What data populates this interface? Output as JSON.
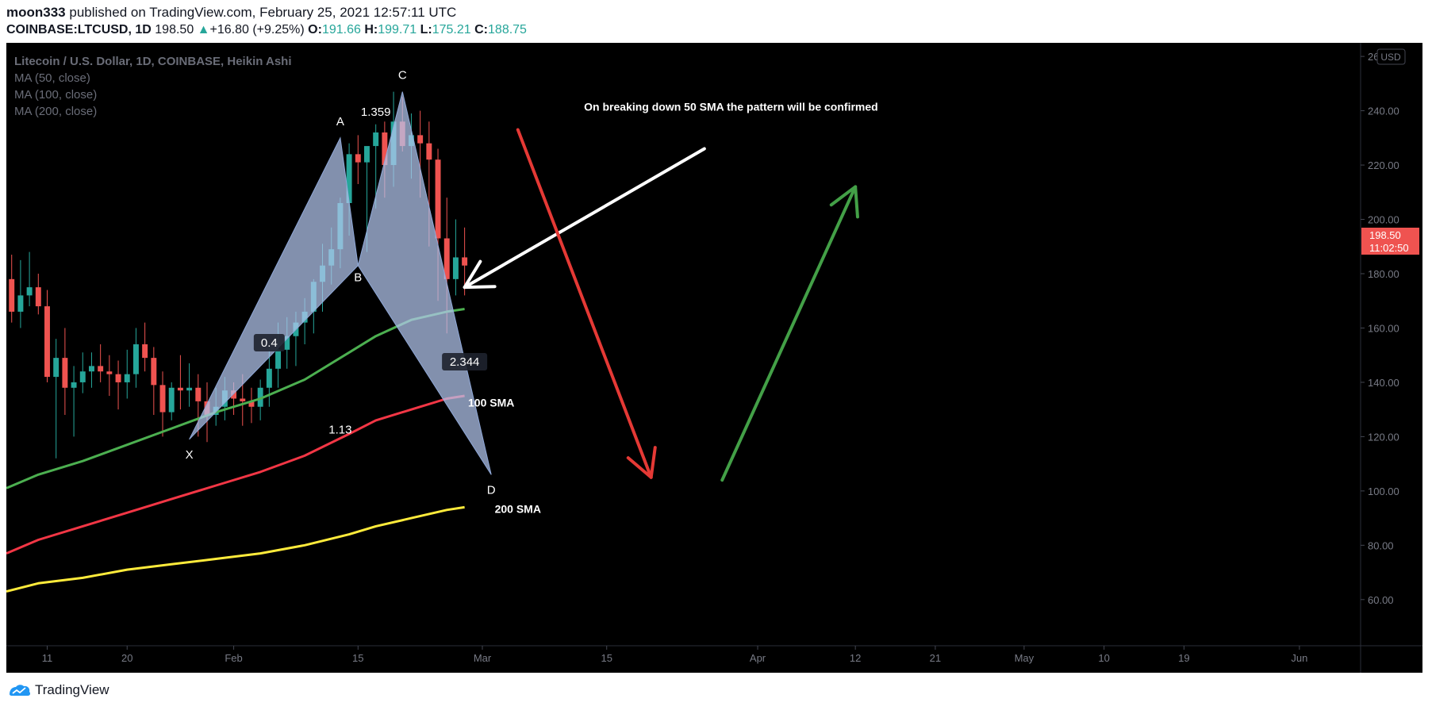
{
  "header": {
    "author": "moon333",
    "published_text": "published on TradingView.com, February 25, 2021 12:57:11 UTC",
    "symbol": "COINBASE:LTCUSD, 1D",
    "last": "198.50",
    "change": "+16.80 (+9.25%)",
    "open_label": "O:",
    "open": "191.66",
    "high_label": "H:",
    "high": "199.71",
    "low_label": "L:",
    "low": "175.21",
    "close_label": "C:",
    "close": "188.75"
  },
  "legend": {
    "title": "Litecoin / U.S. Dollar, 1D, COINBASE, Heikin Ashi",
    "ma50": "MA (50, close)",
    "ma100": "MA (100, close)",
    "ma200": "MA (200, close)"
  },
  "price_axis": {
    "currency": "USD",
    "last_price": "198.50",
    "countdown": "11:02:50"
  },
  "footer": {
    "brand": "TradingView"
  },
  "colors": {
    "background": "#000000",
    "up": "#26a69a",
    "down": "#ef5350",
    "ma50": "#4caf50",
    "ma100": "#f23645",
    "ma200": "#ffeb3b",
    "pattern_fill": "#b4c8f0",
    "arrow_red": "#e53935",
    "arrow_green": "#43a047",
    "arrow_white": "#ffffff"
  },
  "chart_data": {
    "type": "candlestick",
    "title": "Litecoin / U.S. Dollar, 1D, COINBASE, Heikin Ashi",
    "y_ticks": [
      "60.00",
      "80.00",
      "100.00",
      "120.00",
      "140.00",
      "160.00",
      "180.00",
      "200.00",
      "220.00",
      "240.00",
      "260.00"
    ],
    "y_tick_values": [
      60,
      80,
      100,
      120,
      140,
      160,
      180,
      200,
      220,
      240,
      260
    ],
    "ylim": [
      43,
      265
    ],
    "x_ticks": [
      {
        "label": "11",
        "day": 11
      },
      {
        "label": "20",
        "day": 20
      },
      {
        "label": "Feb",
        "day": 32
      },
      {
        "label": "15",
        "day": 46
      },
      {
        "label": "Mar",
        "day": 60
      },
      {
        "label": "15",
        "day": 74
      },
      {
        "label": "Apr",
        "day": 91
      },
      {
        "label": "12",
        "day": 102
      },
      {
        "label": "21",
        "day": 111
      },
      {
        "label": "May",
        "day": 121
      },
      {
        "label": "10",
        "day": 130
      },
      {
        "label": "19",
        "day": 139
      },
      {
        "label": "Jun",
        "day": 152
      }
    ],
    "x_unit": "day of year 2021",
    "xlim": [
      6.4,
      158.8
    ],
    "candles_ohlc": [
      [
        7,
        178,
        187,
        162,
        166
      ],
      [
        8,
        166,
        185,
        160,
        172
      ],
      [
        9,
        172,
        188,
        168,
        175
      ],
      [
        10,
        175,
        180,
        165,
        168
      ],
      [
        11,
        168,
        174,
        140,
        142
      ],
      [
        12,
        142,
        156,
        112,
        149
      ],
      [
        13,
        149,
        160,
        128,
        138
      ],
      [
        14,
        138,
        146,
        120,
        140
      ],
      [
        15,
        140,
        151,
        136,
        144
      ],
      [
        16,
        144,
        151,
        138,
        146
      ],
      [
        17,
        146,
        154,
        140,
        144
      ],
      [
        18,
        144,
        150,
        135,
        143
      ],
      [
        19,
        143,
        148,
        130,
        140
      ],
      [
        20,
        140,
        152,
        134,
        143
      ],
      [
        21,
        143,
        160,
        138,
        154
      ],
      [
        22,
        154,
        162,
        144,
        149
      ],
      [
        23,
        149,
        153,
        128,
        139
      ],
      [
        24,
        139,
        144,
        120,
        129
      ],
      [
        25,
        129,
        140,
        126,
        138
      ],
      [
        26,
        138,
        150,
        130,
        137
      ],
      [
        27,
        137,
        147,
        131,
        138
      ],
      [
        28,
        138,
        143,
        120,
        133
      ],
      [
        29,
        133,
        140,
        118,
        128
      ],
      [
        30,
        128,
        138,
        124,
        131
      ],
      [
        31,
        131,
        142,
        126,
        137
      ],
      [
        32,
        137,
        140,
        128,
        134
      ],
      [
        33,
        134,
        143,
        124,
        133
      ],
      [
        34,
        133,
        138,
        125,
        131
      ],
      [
        35,
        131,
        141,
        126,
        138
      ],
      [
        36,
        138,
        154,
        131,
        145
      ],
      [
        37,
        145,
        162,
        138,
        152
      ],
      [
        38,
        152,
        164,
        145,
        157
      ],
      [
        39,
        157,
        166,
        146,
        162
      ],
      [
        40,
        162,
        171,
        154,
        166
      ],
      [
        41,
        166,
        178,
        158,
        177
      ],
      [
        42,
        177,
        191,
        166,
        183
      ],
      [
        43,
        183,
        197,
        176,
        189
      ],
      [
        44,
        189,
        208,
        182,
        206
      ],
      [
        45,
        206,
        228,
        194,
        224
      ],
      [
        46,
        224,
        231,
        213,
        221
      ],
      [
        47,
        221,
        226,
        188,
        227
      ],
      [
        48,
        227,
        235,
        204,
        232
      ],
      [
        49,
        232,
        236,
        208,
        220
      ],
      [
        50,
        220,
        247,
        212,
        236
      ],
      [
        51,
        236,
        245,
        225,
        227
      ],
      [
        52,
        227,
        239,
        215,
        231
      ],
      [
        53,
        231,
        240,
        208,
        228
      ],
      [
        54,
        228,
        236,
        190,
        222
      ],
      [
        55,
        222,
        226,
        170,
        193
      ],
      [
        56,
        193,
        208,
        158,
        178
      ],
      [
        57,
        178,
        200,
        172,
        186
      ],
      [
        58,
        186,
        197,
        172,
        183
      ]
    ],
    "series": [
      {
        "name": "MA (50, close)",
        "x": [
          6.4,
          10,
          15,
          20,
          25,
          30,
          35,
          40,
          45,
          48,
          52,
          56,
          58
        ],
        "values": [
          101,
          106,
          111,
          117,
          123,
          129,
          134,
          141,
          151,
          157,
          163,
          166,
          167
        ]
      },
      {
        "name": "MA (100, close)",
        "x": [
          6.4,
          10,
          15,
          20,
          25,
          30,
          35,
          40,
          45,
          48,
          52,
          56,
          58
        ],
        "values": [
          77,
          82,
          87,
          92,
          97,
          102,
          107,
          113,
          121,
          126,
          130,
          134,
          135
        ]
      },
      {
        "name": "MA (200, close)",
        "x": [
          6.4,
          10,
          15,
          20,
          25,
          30,
          35,
          40,
          45,
          48,
          52,
          56,
          58
        ],
        "values": [
          63,
          66,
          68,
          71,
          73,
          75,
          77,
          80,
          84,
          87,
          90,
          93,
          94
        ]
      }
    ],
    "harmonic_pattern": {
      "points": [
        {
          "label": "X",
          "day": 27,
          "price": 119
        },
        {
          "label": "A",
          "day": 44,
          "price": 230
        },
        {
          "label": "B",
          "day": 46,
          "price": 183
        },
        {
          "label": "C",
          "day": 51,
          "price": 247
        },
        {
          "label": "D",
          "day": 61,
          "price": 106
        }
      ],
      "ratios": [
        {
          "label": "0.4",
          "day": 36,
          "price": 154
        },
        {
          "label": "1.359",
          "day": 48,
          "price": 239
        },
        {
          "label": "2.344",
          "day": 58,
          "price": 147
        },
        {
          "label": "1.13",
          "day": 44,
          "price": 122
        }
      ]
    },
    "annotations": [
      {
        "text": "On breaking down 50 SMA the pattern will be confirmed",
        "day": 88,
        "price": 240
      },
      {
        "text": "100 SMA",
        "day": 61,
        "price": 131
      },
      {
        "text": "200 SMA",
        "day": 64,
        "price": 92
      }
    ],
    "arrows": [
      {
        "color": "white",
        "from": [
          85,
          226
        ],
        "to": [
          58,
          175
        ]
      },
      {
        "color": "red",
        "from": [
          64,
          233
        ],
        "to": [
          79,
          105
        ]
      },
      {
        "color": "green",
        "from": [
          87,
          104
        ],
        "to": [
          102,
          212
        ]
      }
    ]
  }
}
